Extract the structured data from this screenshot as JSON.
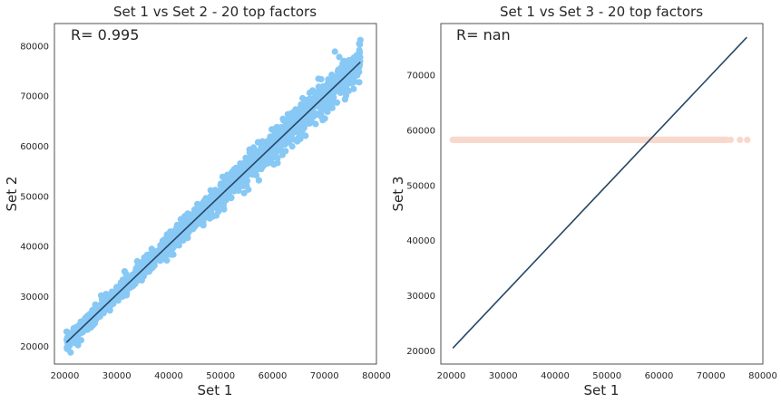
{
  "chart_data": [
    {
      "type": "scatter",
      "title": "Set 1 vs Set 2 - 20 top factors",
      "xlabel": "Set 1",
      "ylabel": "Set 2",
      "annotation": "R= 0.995",
      "xlim": [
        18000,
        80000
      ],
      "ylim": [
        16500,
        84500
      ],
      "xticks": [
        20000,
        30000,
        40000,
        50000,
        60000,
        70000,
        80000
      ],
      "yticks": [
        20000,
        30000,
        40000,
        50000,
        60000,
        70000,
        80000
      ],
      "grid": false,
      "point_color": "#87c8f5",
      "line_color": "#264766",
      "fit_line": {
        "x": [
          20300,
          76900
        ],
        "y": [
          20800,
          76800
        ]
      },
      "series": [
        {
          "type": "scatter",
          "pattern": "band",
          "x_range": [
            20300,
            76900
          ],
          "slope": 0.9894,
          "intercept": 712,
          "spread": 1300,
          "count": 1600
        },
        {
          "type": "scatter",
          "x": [
            20400,
            21200,
            72000,
            76900,
            75000,
            73500,
            68500,
            71500,
            74000
          ],
          "y": [
            19800,
            22700,
            78900,
            81200,
            75200,
            76500,
            69000,
            68800,
            72000
          ]
        }
      ]
    },
    {
      "type": "scatter",
      "title": "Set 1 vs Set 3 - 20 top factors",
      "xlabel": "Set 1",
      "ylabel": "Set 3",
      "annotation": "R= nan",
      "xlim": [
        18000,
        80000
      ],
      "ylim": [
        17600,
        79400
      ],
      "xticks": [
        20000,
        30000,
        40000,
        50000,
        60000,
        70000,
        80000
      ],
      "yticks": [
        20000,
        30000,
        40000,
        50000,
        60000,
        70000
      ],
      "grid": false,
      "point_color": "#f9d8cc",
      "line_color": "#264766",
      "fit_line": {
        "x": [
          20300,
          76900
        ],
        "y": [
          20500,
          76900
        ]
      },
      "series": [
        {
          "type": "scatter",
          "pattern": "constant",
          "y": 58300,
          "x_range": [
            20300,
            73000
          ],
          "count": 260
        },
        {
          "type": "scatter",
          "x": [
            73800,
            75600,
            77000
          ],
          "y": [
            58300,
            58300,
            58300
          ]
        }
      ]
    }
  ]
}
